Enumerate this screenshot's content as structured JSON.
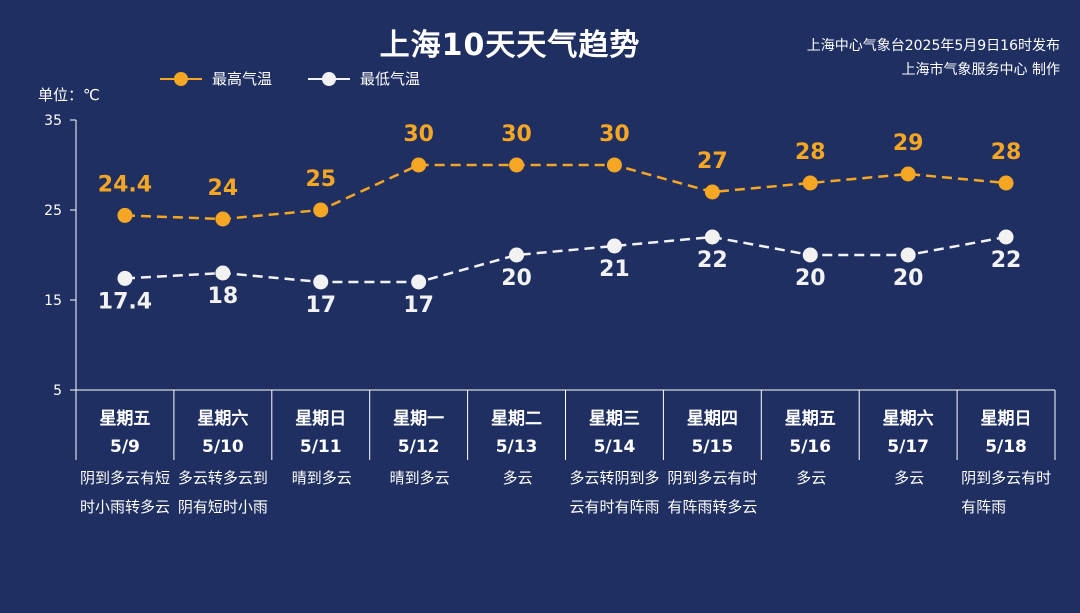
{
  "header": {
    "title": "上海10天天气趋势",
    "source_line1": "上海中心气象台2025年5月9日16时发布",
    "source_line2": "上海市气象服务中心 制作"
  },
  "colors": {
    "background": "#1f2f62",
    "high": "#f5a623",
    "low": "#f2f2f2",
    "axis": "#ffffff"
  },
  "chart_data": {
    "type": "line",
    "unit_label": "单位：℃",
    "ylim": [
      5,
      35
    ],
    "yticks": [
      "35",
      "25",
      "15",
      "5"
    ],
    "categories": [
      "5/9",
      "5/10",
      "5/11",
      "5/12",
      "5/13",
      "5/14",
      "5/15",
      "5/16",
      "5/17",
      "5/18"
    ],
    "weekdays": [
      "星期五",
      "星期六",
      "星期日",
      "星期一",
      "星期二",
      "星期三",
      "星期四",
      "星期五",
      "星期六",
      "星期日"
    ],
    "weather": [
      "阴到多云有短时小雨转多云",
      "多云转多云到阴有短时小雨",
      "晴到多云",
      "晴到多云",
      "多云",
      "多云转阴到多云有时有阵雨",
      "阴到多云有时有阵雨转多云",
      "多云",
      "多云",
      "阴到多云有时有阵雨"
    ],
    "series": [
      {
        "name": "最高气温",
        "values": [
          24.4,
          24,
          25,
          30,
          30,
          30,
          27,
          28,
          29,
          28
        ],
        "labels": [
          "24.4",
          "24",
          "25",
          "30",
          "30",
          "30",
          "27",
          "28",
          "29",
          "28"
        ]
      },
      {
        "name": "最低气温",
        "values": [
          17.4,
          18,
          17,
          17,
          20,
          21,
          22,
          20,
          20,
          22
        ],
        "labels": [
          "17.4",
          "18",
          "17",
          "17",
          "20",
          "21",
          "22",
          "20",
          "20",
          "22"
        ]
      }
    ],
    "grid": false,
    "legend_position": "top-left"
  }
}
